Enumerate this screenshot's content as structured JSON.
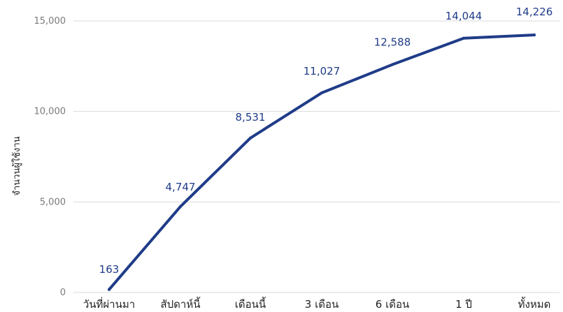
{
  "chart_data": {
    "type": "line",
    "title": "",
    "xlabel": "",
    "ylabel": "จำนวนผู้ใช้งาน",
    "categories": [
      "วันที่ผ่านมา",
      "สัปดาห์นี้",
      "เดือนนี้",
      "3 เดือน",
      "6 เดือน",
      "1 ปี",
      "ทั้งหมด"
    ],
    "series": [
      {
        "values": [
          163,
          4747,
          8531,
          11027,
          12588,
          14044,
          14226
        ]
      }
    ],
    "data_labels": [
      "163",
      "4,747",
      "8,531",
      "11,027",
      "12,588",
      "14,044",
      "14,226"
    ],
    "yticks": [
      "0",
      "5,000",
      "10,000",
      "15,000"
    ],
    "ylim": [
      0,
      15000
    ],
    "grid": true,
    "legend": "none",
    "colors": {
      "line": "#1f3c88",
      "data_label": "#1f3c88",
      "grid": "#d9d9d9"
    }
  }
}
